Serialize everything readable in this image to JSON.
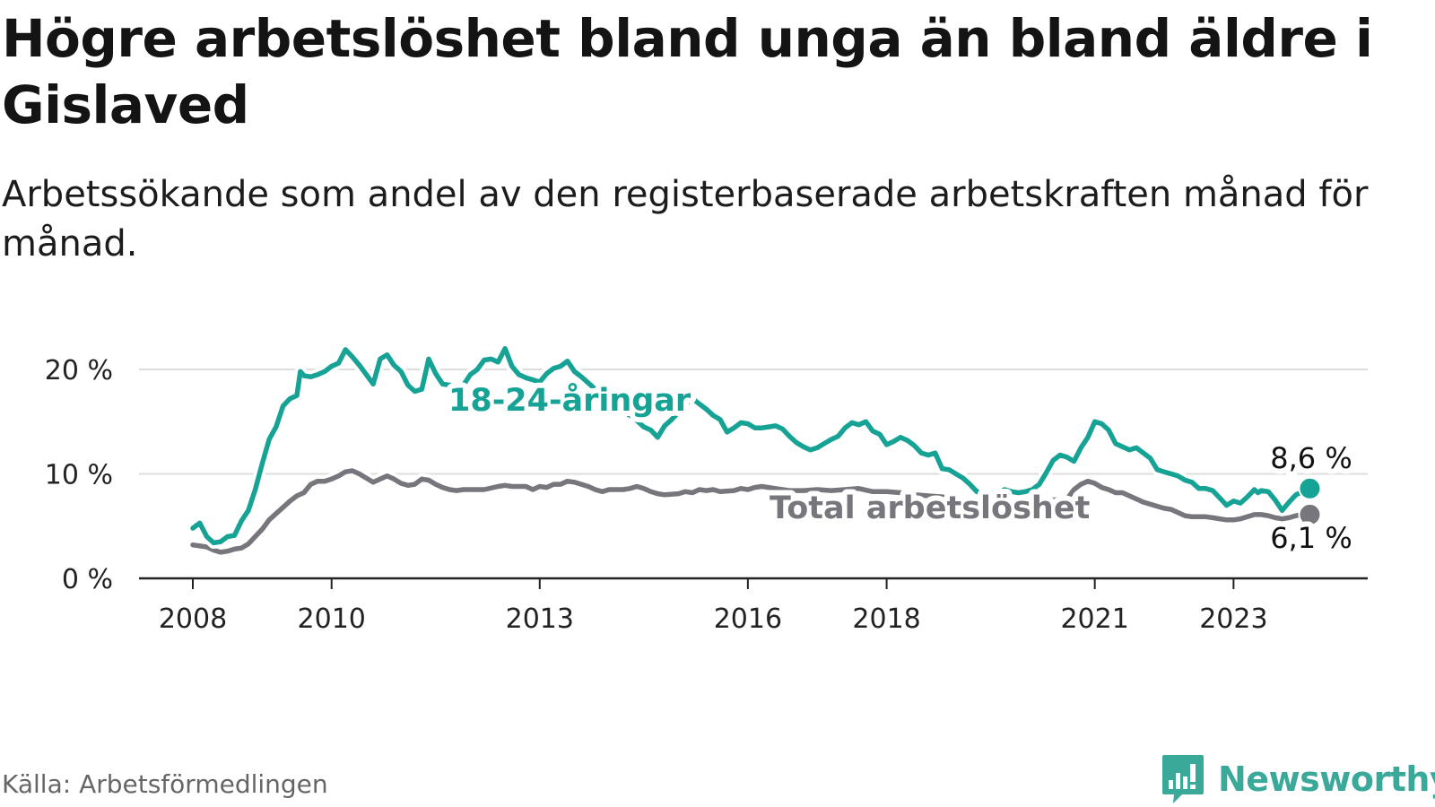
{
  "title": "Högre arbetslöshet bland unga än bland äldre i Gislaved",
  "subtitle": "Arbetssökande som andel av den registerbaserade arbetskraften månad för månad.",
  "source": "Källa: Arbetsförmedlingen",
  "brand": {
    "name": "Newsworthy",
    "icon": "newsworthy-logo-icon",
    "color": "#3aa99a"
  },
  "colors": {
    "youth": "#16a396",
    "total": "#77767c",
    "grid": "#dddddd",
    "axis": "#222222"
  },
  "chart_data": {
    "type": "line",
    "title": "Högre arbetslöshet bland unga än bland äldre i Gislaved",
    "xlabel": "",
    "ylabel": "",
    "xlim": [
      2008.0,
      2023.9
    ],
    "ylim": [
      0,
      20
    ],
    "grid": true,
    "y_ticks": [
      0,
      10,
      20
    ],
    "y_tick_labels": [
      "0 %",
      "10 %",
      "20 %"
    ],
    "x_ticks": [
      2008,
      2010,
      2013,
      2016,
      2018,
      2021,
      2023
    ],
    "x_tick_labels": [
      "2008",
      "2010",
      "2013",
      "2016",
      "2018",
      "2021",
      "2023"
    ],
    "series": [
      {
        "name": "18-24-åringar",
        "color": "#16a396",
        "end_label": "8,6 %",
        "points": [
          [
            2008.0,
            4.8
          ],
          [
            2008.1,
            5.3
          ],
          [
            2008.2,
            4.0
          ],
          [
            2008.3,
            3.4
          ],
          [
            2008.4,
            3.5
          ],
          [
            2008.5,
            4.0
          ],
          [
            2008.6,
            4.1
          ],
          [
            2008.7,
            5.5
          ],
          [
            2008.8,
            6.5
          ],
          [
            2008.9,
            8.5
          ],
          [
            2009.0,
            11.0
          ],
          [
            2009.1,
            13.3
          ],
          [
            2009.2,
            14.5
          ],
          [
            2009.3,
            16.5
          ],
          [
            2009.4,
            17.2
          ],
          [
            2009.5,
            17.5
          ],
          [
            2009.55,
            19.8
          ],
          [
            2009.6,
            19.4
          ],
          [
            2009.7,
            19.3
          ],
          [
            2009.8,
            19.5
          ],
          [
            2009.9,
            19.8
          ],
          [
            2010.0,
            20.3
          ],
          [
            2010.1,
            20.6
          ],
          [
            2010.2,
            21.9
          ],
          [
            2010.3,
            21.2
          ],
          [
            2010.4,
            20.4
          ],
          [
            2010.5,
            19.5
          ],
          [
            2010.6,
            18.6
          ],
          [
            2010.7,
            21.0
          ],
          [
            2010.8,
            21.4
          ],
          [
            2010.9,
            20.4
          ],
          [
            2011.0,
            19.8
          ],
          [
            2011.1,
            18.5
          ],
          [
            2011.2,
            17.9
          ],
          [
            2011.3,
            18.1
          ],
          [
            2011.4,
            21.0
          ],
          [
            2011.5,
            19.6
          ],
          [
            2011.6,
            18.6
          ],
          [
            2011.7,
            18.5
          ],
          [
            2011.8,
            17.9
          ],
          [
            2011.9,
            18.5
          ],
          [
            2012.0,
            19.5
          ],
          [
            2012.1,
            20.0
          ],
          [
            2012.2,
            20.9
          ],
          [
            2012.3,
            21.0
          ],
          [
            2012.4,
            20.7
          ],
          [
            2012.5,
            22.0
          ],
          [
            2012.6,
            20.3
          ],
          [
            2012.7,
            19.5
          ],
          [
            2012.8,
            19.2
          ],
          [
            2012.9,
            19.0
          ],
          [
            2013.0,
            18.8
          ],
          [
            2013.1,
            19.6
          ],
          [
            2013.2,
            20.1
          ],
          [
            2013.3,
            20.3
          ],
          [
            2013.4,
            20.8
          ],
          [
            2013.5,
            19.8
          ],
          [
            2013.6,
            19.3
          ],
          [
            2013.7,
            18.7
          ],
          [
            2013.8,
            18.1
          ],
          [
            2013.9,
            17.6
          ],
          [
            2014.0,
            17.0
          ],
          [
            2014.1,
            16.5
          ],
          [
            2014.2,
            16.0
          ],
          [
            2014.3,
            15.6
          ],
          [
            2014.4,
            15.1
          ],
          [
            2014.5,
            14.5
          ],
          [
            2014.6,
            14.2
          ],
          [
            2014.7,
            13.5
          ],
          [
            2014.8,
            14.6
          ],
          [
            2014.9,
            15.2
          ],
          [
            2015.0,
            15.9
          ],
          [
            2015.1,
            16.7
          ],
          [
            2015.2,
            17.2
          ],
          [
            2015.3,
            16.7
          ],
          [
            2015.4,
            16.2
          ],
          [
            2015.5,
            15.6
          ],
          [
            2015.6,
            15.2
          ],
          [
            2015.7,
            14.0
          ],
          [
            2015.8,
            14.4
          ],
          [
            2015.9,
            14.9
          ],
          [
            2016.0,
            14.8
          ],
          [
            2016.1,
            14.4
          ],
          [
            2016.2,
            14.4
          ],
          [
            2016.3,
            14.5
          ],
          [
            2016.4,
            14.6
          ],
          [
            2016.5,
            14.3
          ],
          [
            2016.6,
            13.6
          ],
          [
            2016.7,
            13.0
          ],
          [
            2016.8,
            12.6
          ],
          [
            2016.9,
            12.3
          ],
          [
            2017.0,
            12.5
          ],
          [
            2017.1,
            12.9
          ],
          [
            2017.2,
            13.3
          ],
          [
            2017.3,
            13.6
          ],
          [
            2017.4,
            14.4
          ],
          [
            2017.5,
            14.9
          ],
          [
            2017.6,
            14.7
          ],
          [
            2017.7,
            15.0
          ],
          [
            2017.8,
            14.1
          ],
          [
            2017.9,
            13.8
          ],
          [
            2018.0,
            12.8
          ],
          [
            2018.1,
            13.1
          ],
          [
            2018.2,
            13.5
          ],
          [
            2018.3,
            13.2
          ],
          [
            2018.4,
            12.7
          ],
          [
            2018.5,
            12.0
          ],
          [
            2018.6,
            11.8
          ],
          [
            2018.7,
            12.0
          ],
          [
            2018.8,
            10.5
          ],
          [
            2018.9,
            10.4
          ],
          [
            2019.0,
            10.0
          ],
          [
            2019.1,
            9.6
          ],
          [
            2019.2,
            9.0
          ],
          [
            2019.3,
            8.3
          ],
          [
            2019.4,
            8.0
          ],
          [
            2019.5,
            8.2
          ],
          [
            2019.6,
            8.1
          ],
          [
            2019.7,
            8.5
          ],
          [
            2019.8,
            8.3
          ],
          [
            2019.9,
            8.2
          ],
          [
            2020.0,
            8.3
          ],
          [
            2020.1,
            8.5
          ],
          [
            2020.2,
            9.0
          ],
          [
            2020.3,
            10.1
          ],
          [
            2020.4,
            11.3
          ],
          [
            2020.5,
            11.8
          ],
          [
            2020.6,
            11.6
          ],
          [
            2020.7,
            11.2
          ],
          [
            2020.8,
            12.5
          ],
          [
            2020.9,
            13.5
          ],
          [
            2021.0,
            15.0
          ],
          [
            2021.1,
            14.8
          ],
          [
            2021.2,
            14.2
          ],
          [
            2021.3,
            12.9
          ],
          [
            2021.4,
            12.6
          ],
          [
            2021.5,
            12.3
          ],
          [
            2021.6,
            12.5
          ],
          [
            2021.7,
            12.0
          ],
          [
            2021.8,
            11.5
          ],
          [
            2021.9,
            10.4
          ],
          [
            2022.0,
            10.2
          ],
          [
            2022.1,
            10.0
          ],
          [
            2022.2,
            9.8
          ],
          [
            2022.3,
            9.4
          ],
          [
            2022.4,
            9.2
          ],
          [
            2022.5,
            8.6
          ],
          [
            2022.6,
            8.6
          ],
          [
            2022.7,
            8.4
          ],
          [
            2022.8,
            7.7
          ],
          [
            2022.9,
            7.0
          ],
          [
            2023.0,
            7.4
          ],
          [
            2023.1,
            7.2
          ],
          [
            2023.2,
            7.8
          ],
          [
            2023.3,
            8.5
          ],
          [
            2023.35,
            8.2
          ],
          [
            2023.4,
            8.4
          ],
          [
            2023.5,
            8.3
          ],
          [
            2023.6,
            7.5
          ],
          [
            2023.7,
            6.5
          ],
          [
            2023.8,
            7.3
          ],
          [
            2023.9,
            8.0
          ],
          [
            2024.0,
            8.3
          ],
          [
            2024.1,
            8.6
          ]
        ]
      },
      {
        "name": "Total arbetslöshet",
        "color": "#77767c",
        "end_label": "6,1 %",
        "points": [
          [
            2008.0,
            3.2
          ],
          [
            2008.2,
            3.0
          ],
          [
            2008.3,
            2.7
          ],
          [
            2008.4,
            2.5
          ],
          [
            2008.5,
            2.6
          ],
          [
            2008.6,
            2.8
          ],
          [
            2008.7,
            2.9
          ],
          [
            2008.8,
            3.3
          ],
          [
            2008.9,
            4.0
          ],
          [
            2009.0,
            4.7
          ],
          [
            2009.1,
            5.6
          ],
          [
            2009.2,
            6.2
          ],
          [
            2009.3,
            6.8
          ],
          [
            2009.4,
            7.4
          ],
          [
            2009.5,
            7.9
          ],
          [
            2009.6,
            8.2
          ],
          [
            2009.7,
            9.0
          ],
          [
            2009.8,
            9.3
          ],
          [
            2009.9,
            9.3
          ],
          [
            2010.0,
            9.5
          ],
          [
            2010.1,
            9.8
          ],
          [
            2010.2,
            10.2
          ],
          [
            2010.3,
            10.3
          ],
          [
            2010.4,
            10.0
          ],
          [
            2010.5,
            9.6
          ],
          [
            2010.6,
            9.2
          ],
          [
            2010.7,
            9.5
          ],
          [
            2010.8,
            9.8
          ],
          [
            2010.9,
            9.5
          ],
          [
            2011.0,
            9.1
          ],
          [
            2011.1,
            8.9
          ],
          [
            2011.2,
            9.0
          ],
          [
            2011.3,
            9.5
          ],
          [
            2011.4,
            9.4
          ],
          [
            2011.5,
            9.0
          ],
          [
            2011.6,
            8.7
          ],
          [
            2011.7,
            8.5
          ],
          [
            2011.8,
            8.4
          ],
          [
            2011.9,
            8.5
          ],
          [
            2012.0,
            8.5
          ],
          [
            2012.2,
            8.5
          ],
          [
            2012.4,
            8.8
          ],
          [
            2012.5,
            8.9
          ],
          [
            2012.6,
            8.8
          ],
          [
            2012.8,
            8.8
          ],
          [
            2012.9,
            8.5
          ],
          [
            2013.0,
            8.8
          ],
          [
            2013.1,
            8.7
          ],
          [
            2013.2,
            9.0
          ],
          [
            2013.3,
            9.0
          ],
          [
            2013.4,
            9.3
          ],
          [
            2013.5,
            9.2
          ],
          [
            2013.6,
            9.0
          ],
          [
            2013.7,
            8.8
          ],
          [
            2013.8,
            8.5
          ],
          [
            2013.9,
            8.3
          ],
          [
            2014.0,
            8.5
          ],
          [
            2014.2,
            8.5
          ],
          [
            2014.3,
            8.6
          ],
          [
            2014.4,
            8.8
          ],
          [
            2014.5,
            8.6
          ],
          [
            2014.6,
            8.3
          ],
          [
            2014.7,
            8.1
          ],
          [
            2014.8,
            8.0
          ],
          [
            2015.0,
            8.1
          ],
          [
            2015.1,
            8.3
          ],
          [
            2015.2,
            8.2
          ],
          [
            2015.3,
            8.5
          ],
          [
            2015.4,
            8.4
          ],
          [
            2015.5,
            8.5
          ],
          [
            2015.6,
            8.3
          ],
          [
            2015.8,
            8.4
          ],
          [
            2015.9,
            8.6
          ],
          [
            2016.0,
            8.5
          ],
          [
            2016.1,
            8.7
          ],
          [
            2016.2,
            8.8
          ],
          [
            2016.4,
            8.6
          ],
          [
            2016.6,
            8.4
          ],
          [
            2016.8,
            8.4
          ],
          [
            2017.0,
            8.5
          ],
          [
            2017.2,
            8.4
          ],
          [
            2017.4,
            8.5
          ],
          [
            2017.6,
            8.6
          ],
          [
            2017.8,
            8.3
          ],
          [
            2018.0,
            8.3
          ],
          [
            2018.2,
            8.2
          ],
          [
            2018.4,
            8.0
          ],
          [
            2018.6,
            7.9
          ],
          [
            2018.8,
            7.8
          ],
          [
            2019.0,
            7.5
          ],
          [
            2019.2,
            7.3
          ],
          [
            2019.4,
            7.2
          ],
          [
            2019.6,
            7.1
          ],
          [
            2019.8,
            7.0
          ],
          [
            2020.0,
            7.2
          ],
          [
            2020.2,
            7.4
          ],
          [
            2020.4,
            7.5
          ],
          [
            2020.6,
            7.6
          ],
          [
            2020.7,
            8.5
          ],
          [
            2020.8,
            9.0
          ],
          [
            2020.9,
            9.3
          ],
          [
            2021.0,
            9.1
          ],
          [
            2021.1,
            8.7
          ],
          [
            2021.2,
            8.5
          ],
          [
            2021.3,
            8.2
          ],
          [
            2021.4,
            8.2
          ],
          [
            2021.5,
            7.9
          ],
          [
            2021.6,
            7.6
          ],
          [
            2021.7,
            7.3
          ],
          [
            2021.8,
            7.1
          ],
          [
            2021.9,
            6.9
          ],
          [
            2022.0,
            6.7
          ],
          [
            2022.1,
            6.6
          ],
          [
            2022.2,
            6.3
          ],
          [
            2022.3,
            6.0
          ],
          [
            2022.4,
            5.9
          ],
          [
            2022.5,
            5.9
          ],
          [
            2022.6,
            5.9
          ],
          [
            2022.7,
            5.8
          ],
          [
            2022.8,
            5.7
          ],
          [
            2022.9,
            5.6
          ],
          [
            2023.0,
            5.6
          ],
          [
            2023.1,
            5.7
          ],
          [
            2023.2,
            5.9
          ],
          [
            2023.3,
            6.1
          ],
          [
            2023.4,
            6.1
          ],
          [
            2023.5,
            6.0
          ],
          [
            2023.6,
            5.8
          ],
          [
            2023.7,
            5.7
          ],
          [
            2023.8,
            5.8
          ],
          [
            2023.9,
            6.0
          ],
          [
            2024.0,
            6.1
          ],
          [
            2024.1,
            6.1
          ]
        ]
      }
    ]
  }
}
